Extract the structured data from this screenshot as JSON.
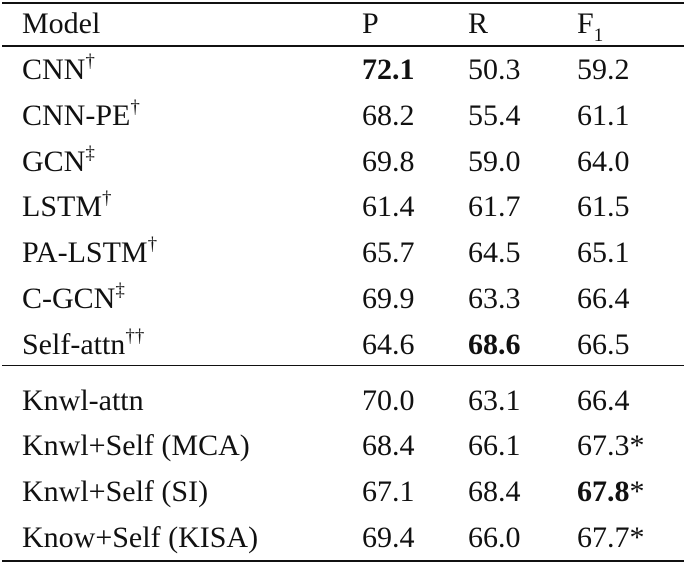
{
  "table": {
    "header": {
      "model": "Model",
      "p": "P",
      "r": "R",
      "f1": {
        "text": "F",
        "sub": "1"
      }
    },
    "groups": [
      [
        {
          "model": {
            "text": "CNN",
            "sup": "†"
          },
          "p": {
            "text": "72.1",
            "bold": true
          },
          "r": {
            "text": "50.3"
          },
          "f1": {
            "text": "59.2"
          }
        },
        {
          "model": {
            "text": "CNN-PE",
            "sup": "†"
          },
          "p": {
            "text": "68.2"
          },
          "r": {
            "text": "55.4"
          },
          "f1": {
            "text": "61.1"
          }
        },
        {
          "model": {
            "text": "GCN",
            "sup": "‡"
          },
          "p": {
            "text": "69.8"
          },
          "r": {
            "text": "59.0"
          },
          "f1": {
            "text": "64.0"
          }
        },
        {
          "model": {
            "text": "LSTM",
            "sup": "†"
          },
          "p": {
            "text": "61.4"
          },
          "r": {
            "text": "61.7"
          },
          "f1": {
            "text": "61.5"
          }
        },
        {
          "model": {
            "text": "PA-LSTM",
            "sup": "†"
          },
          "p": {
            "text": "65.7"
          },
          "r": {
            "text": "64.5"
          },
          "f1": {
            "text": "65.1"
          }
        },
        {
          "model": {
            "text": "C-GCN",
            "sup": "‡"
          },
          "p": {
            "text": "69.9"
          },
          "r": {
            "text": "63.3"
          },
          "f1": {
            "text": "66.4"
          }
        },
        {
          "model": {
            "text": "Self-attn",
            "sup": "††"
          },
          "p": {
            "text": "64.6"
          },
          "r": {
            "text": "68.6",
            "bold": true
          },
          "f1": {
            "text": "66.5"
          }
        }
      ],
      [
        {
          "model": {
            "text": "Knwl-attn"
          },
          "p": {
            "text": "70.0"
          },
          "r": {
            "text": "63.1"
          },
          "f1": {
            "text": "66.4"
          }
        },
        {
          "model": {
            "text": "Knwl+Self (MCA)"
          },
          "p": {
            "text": "68.4"
          },
          "r": {
            "text": "66.1"
          },
          "f1": {
            "text": "67.3",
            "note": "*"
          }
        },
        {
          "model": {
            "text": "Knwl+Self (SI)"
          },
          "p": {
            "text": "67.1"
          },
          "r": {
            "text": "68.4"
          },
          "f1": {
            "text": "67.8",
            "bold": true,
            "note": "*"
          }
        },
        {
          "model": {
            "text": "Know+Self (KISA)"
          },
          "p": {
            "text": "69.4"
          },
          "r": {
            "text": "66.0"
          },
          "f1": {
            "text": "67.7",
            "note": "*"
          }
        }
      ]
    ]
  }
}
